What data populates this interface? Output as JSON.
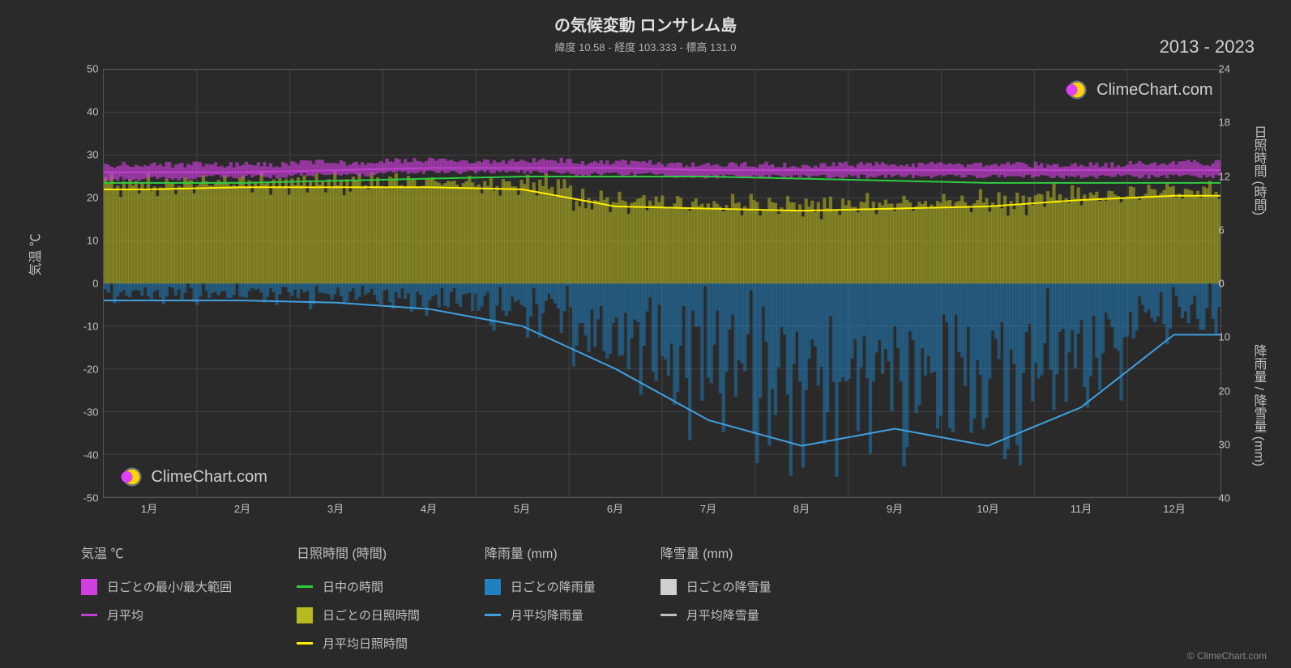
{
  "title": "の気候変動 ロンサレム島",
  "subtitle": "緯度 10.58 - 経度 103.333 - 標高 131.0",
  "year_range": "2013 - 2023",
  "watermark_text": "ClimeChart.com",
  "credit": "© ClimeChart.com",
  "chart": {
    "background_color": "#2a2a2a",
    "grid_color": "#444444",
    "text_color": "#c0c0c0",
    "y_left": {
      "label": "気温 ℃",
      "min": -50,
      "max": 50,
      "ticks": [
        -50,
        -40,
        -30,
        -20,
        -10,
        0,
        10,
        20,
        30,
        40,
        50
      ]
    },
    "y_right_top": {
      "label": "日照時間 (時間)",
      "min": 0,
      "max": 24,
      "ticks": [
        0,
        6,
        12,
        18,
        24
      ]
    },
    "y_right_bottom": {
      "label": "降雨量 / 降雪量 (mm)",
      "min": 0,
      "max": 40,
      "ticks": [
        0,
        10,
        20,
        30,
        40
      ]
    },
    "x_axis": {
      "labels": [
        "1月",
        "2月",
        "3月",
        "4月",
        "5月",
        "6月",
        "7月",
        "8月",
        "9月",
        "10月",
        "11月",
        "12月"
      ]
    },
    "colors": {
      "temp_range": "#d040e0",
      "temp_avg": "#c040d0",
      "daylight": "#2ecc40",
      "sunshine_daily": "#b8b820",
      "sunshine_avg": "#ffee00",
      "rain_daily": "#2080c0",
      "rain_avg": "#40a0e0",
      "snow_daily": "#d0d0d0",
      "snow_avg": "#c0c0c0"
    },
    "series": {
      "temp_high": [
        27,
        27,
        27.5,
        28,
        28,
        27.5,
        27,
        27,
        27,
        27,
        27,
        27.5
      ],
      "temp_low": [
        25,
        25.5,
        26,
        26.5,
        26.5,
        26,
        25.5,
        25.5,
        25.5,
        25.5,
        25.5,
        25.5
      ],
      "temp_avg": [
        26,
        26,
        26.5,
        27,
        27,
        27,
        26.5,
        26.5,
        26.5,
        26.5,
        26.5,
        26.5
      ],
      "daylight_hours": [
        23.5,
        23.5,
        24,
        24.5,
        25,
        25,
        25,
        24.5,
        24,
        23.5,
        23.5,
        23.5
      ],
      "sunshine_avg": [
        22,
        22.5,
        22.5,
        22.5,
        22,
        18,
        17.5,
        17,
        17.5,
        18,
        19.5,
        20.5
      ],
      "rain_avg": [
        -4,
        -4,
        -4.5,
        -6,
        -10,
        -20,
        -32,
        -38,
        -34,
        -38,
        -29,
        -12
      ],
      "rain_avg_end": [
        -5,
        -5
      ]
    }
  },
  "legend": {
    "groups": [
      {
        "header": "気温 ℃",
        "items": [
          {
            "type": "box",
            "color": "#d040e0",
            "label": "日ごとの最小/最大範囲"
          },
          {
            "type": "line",
            "color": "#c040d0",
            "label": "月平均"
          }
        ]
      },
      {
        "header": "日照時間 (時間)",
        "items": [
          {
            "type": "line",
            "color": "#2ecc40",
            "label": "日中の時間"
          },
          {
            "type": "box",
            "color": "#b8b820",
            "label": "日ごとの日照時間"
          },
          {
            "type": "line",
            "color": "#ffee00",
            "label": "月平均日照時間"
          }
        ]
      },
      {
        "header": "降雨量 (mm)",
        "items": [
          {
            "type": "box",
            "color": "#2080c0",
            "label": "日ごとの降雨量"
          },
          {
            "type": "line",
            "color": "#40a0e0",
            "label": "月平均降雨量"
          }
        ]
      },
      {
        "header": "降雪量 (mm)",
        "items": [
          {
            "type": "box",
            "color": "#d0d0d0",
            "label": "日ごとの降雪量"
          },
          {
            "type": "line",
            "color": "#c0c0c0",
            "label": "月平均降雪量"
          }
        ]
      }
    ]
  }
}
